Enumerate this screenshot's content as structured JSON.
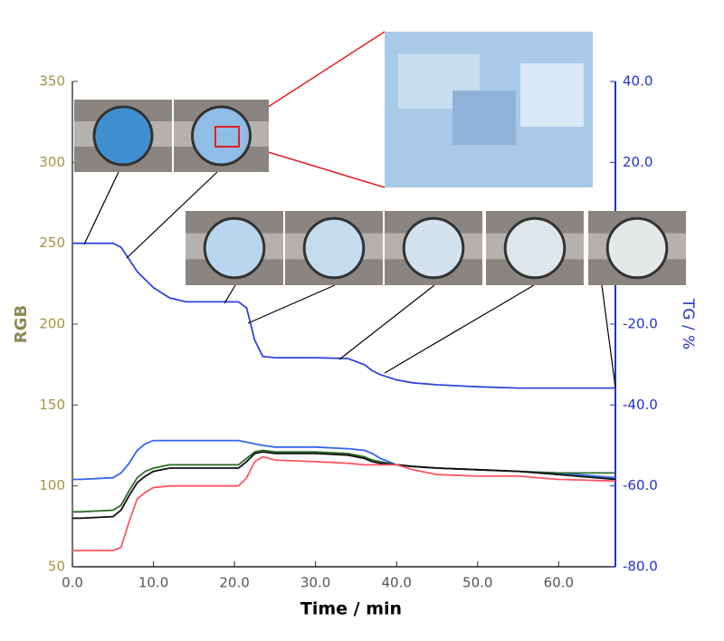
{
  "chart_data": {
    "type": "line",
    "x_label": "Time / min",
    "y_label": "RGB",
    "y2_label": "TG / %",
    "x": [
      0,
      1,
      5,
      6,
      7,
      8,
      9,
      10,
      12,
      14,
      18,
      20.5,
      21.5,
      22.5,
      23.5,
      25,
      30,
      34,
      36,
      37,
      38,
      40,
      42,
      45,
      50,
      55,
      60,
      67
    ],
    "series": [
      {
        "color": "#3344dd",
        "axis": "y2",
        "values": [
          0,
          0,
          0,
          -1,
          -4,
          -7,
          -9,
          -11,
          -13.5,
          -14.5,
          -14.5,
          -14.5,
          -16,
          -24,
          -28,
          -28.3,
          -28.3,
          -28.5,
          -30,
          -31.5,
          -32.5,
          -33.8,
          -34.5,
          -35,
          -35.5,
          -35.8,
          -35.8,
          -35.8
        ]
      },
      {
        "color": "#3366ee",
        "values": [
          104,
          104,
          105,
          108,
          114,
          122,
          126,
          128,
          128,
          128,
          128,
          128,
          127,
          126,
          125,
          124,
          124,
          123,
          122,
          120,
          117,
          113,
          112,
          111,
          110,
          109,
          108,
          105
        ]
      },
      {
        "color": "#2e6b2e",
        "values": [
          84,
          84,
          85,
          88,
          97,
          105,
          109,
          111,
          113,
          113,
          113,
          113,
          117,
          121,
          122,
          121,
          121,
          120,
          118,
          116,
          115,
          113,
          112,
          111,
          110,
          109,
          108,
          108
        ]
      },
      {
        "color": "#111111",
        "values": [
          80,
          80,
          81,
          85,
          94,
          102,
          106,
          109,
          111,
          111,
          111,
          111,
          115,
          120,
          121,
          120,
          120,
          119,
          117,
          115,
          114,
          113,
          112,
          111,
          110,
          109,
          107,
          104
        ]
      },
      {
        "color": "#ff5566",
        "values": [
          60,
          60,
          60,
          62,
          78,
          92,
          96,
          99,
          100,
          100,
          100,
          100,
          105,
          115,
          118,
          116,
          115,
          114,
          113,
          113,
          113,
          113,
          110,
          107,
          106,
          106,
          104,
          103
        ]
      }
    ],
    "xlim": [
      0,
      67
    ],
    "xticks": [
      {
        "value": 0,
        "label": "0.0"
      },
      {
        "value": 10,
        "label": "10.0"
      },
      {
        "value": 20,
        "label": "20.0"
      },
      {
        "value": 30,
        "label": "30.0"
      },
      {
        "value": 40,
        "label": "40.0"
      },
      {
        "value": 50,
        "label": "50.0"
      },
      {
        "value": 60,
        "label": "60.0"
      }
    ],
    "ylim": [
      50,
      350
    ],
    "yticks": [
      50,
      100,
      150,
      200,
      250,
      300,
      350
    ],
    "y2lim": [
      -80,
      40
    ],
    "y2ticks": [
      {
        "value": -80,
        "label": "-80.0"
      },
      {
        "value": -60,
        "label": "-60.0"
      },
      {
        "value": -40,
        "label": "-40.0"
      },
      {
        "value": -20,
        "label": "-20.0"
      },
      {
        "value": 20,
        "label": "20.0"
      },
      {
        "value": 40,
        "label": "40.0"
      }
    ]
  }
}
